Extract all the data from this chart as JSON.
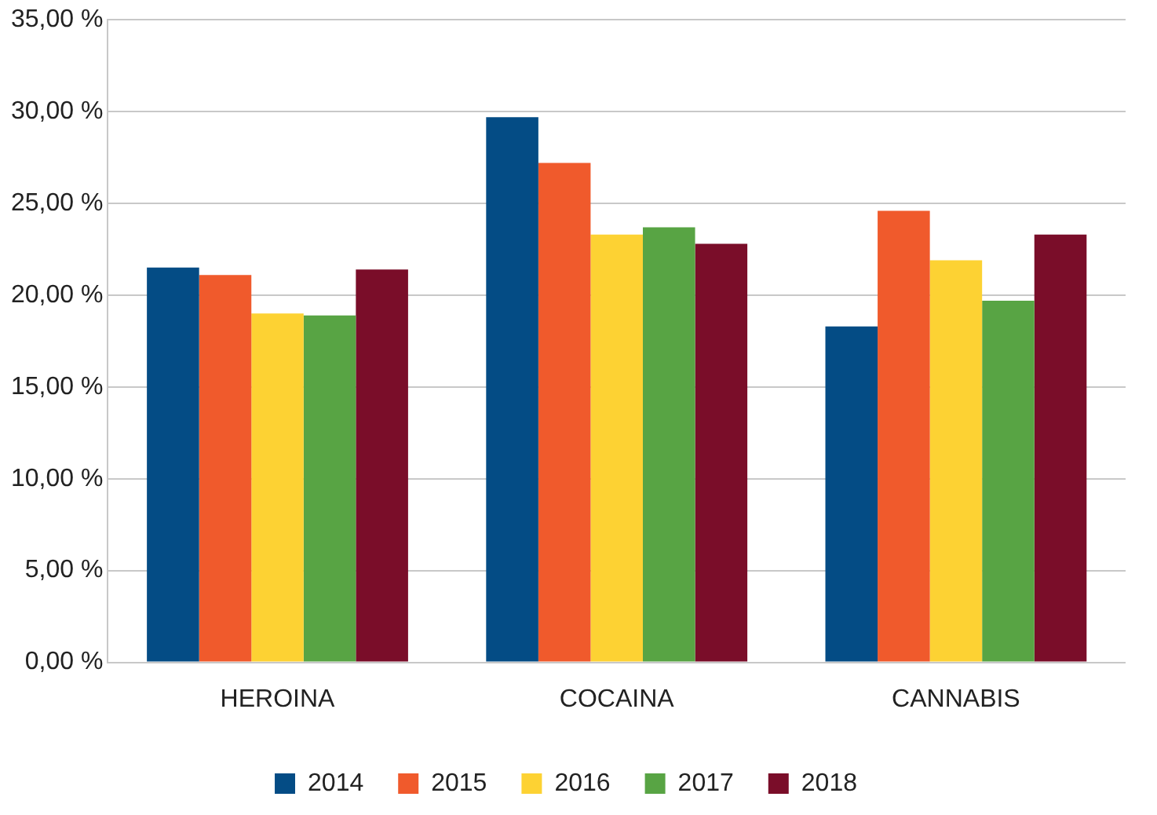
{
  "chart_data": {
    "type": "bar",
    "categories": [
      "HEROINA",
      "COCAINA",
      "CANNABIS"
    ],
    "series": [
      {
        "name": "2014",
        "color": "#044c85",
        "values": [
          21.5,
          29.7,
          18.3
        ]
      },
      {
        "name": "2015",
        "color": "#f05a2c",
        "values": [
          21.1,
          27.2,
          24.6
        ]
      },
      {
        "name": "2016",
        "color": "#fdd233",
        "values": [
          19.0,
          23.3,
          21.9
        ]
      },
      {
        "name": "2017",
        "color": "#58a444",
        "values": [
          18.9,
          23.7,
          19.7
        ]
      },
      {
        "name": "2018",
        "color": "#7a0d29",
        "values": [
          21.4,
          22.8,
          23.3
        ]
      }
    ],
    "ylim": [
      0,
      35
    ],
    "yticks": [
      {
        "value": 0,
        "label": "0,00 %"
      },
      {
        "value": 5,
        "label": "5,00 %"
      },
      {
        "value": 10,
        "label": "10,00 %"
      },
      {
        "value": 15,
        "label": "15,00 %"
      },
      {
        "value": 20,
        "label": "20,00 %"
      },
      {
        "value": 25,
        "label": "25,00 %"
      },
      {
        "value": 30,
        "label": "30,00 %"
      },
      {
        "value": 35,
        "label": "35,00 %"
      }
    ],
    "grid": "y",
    "legend": "bottom"
  }
}
